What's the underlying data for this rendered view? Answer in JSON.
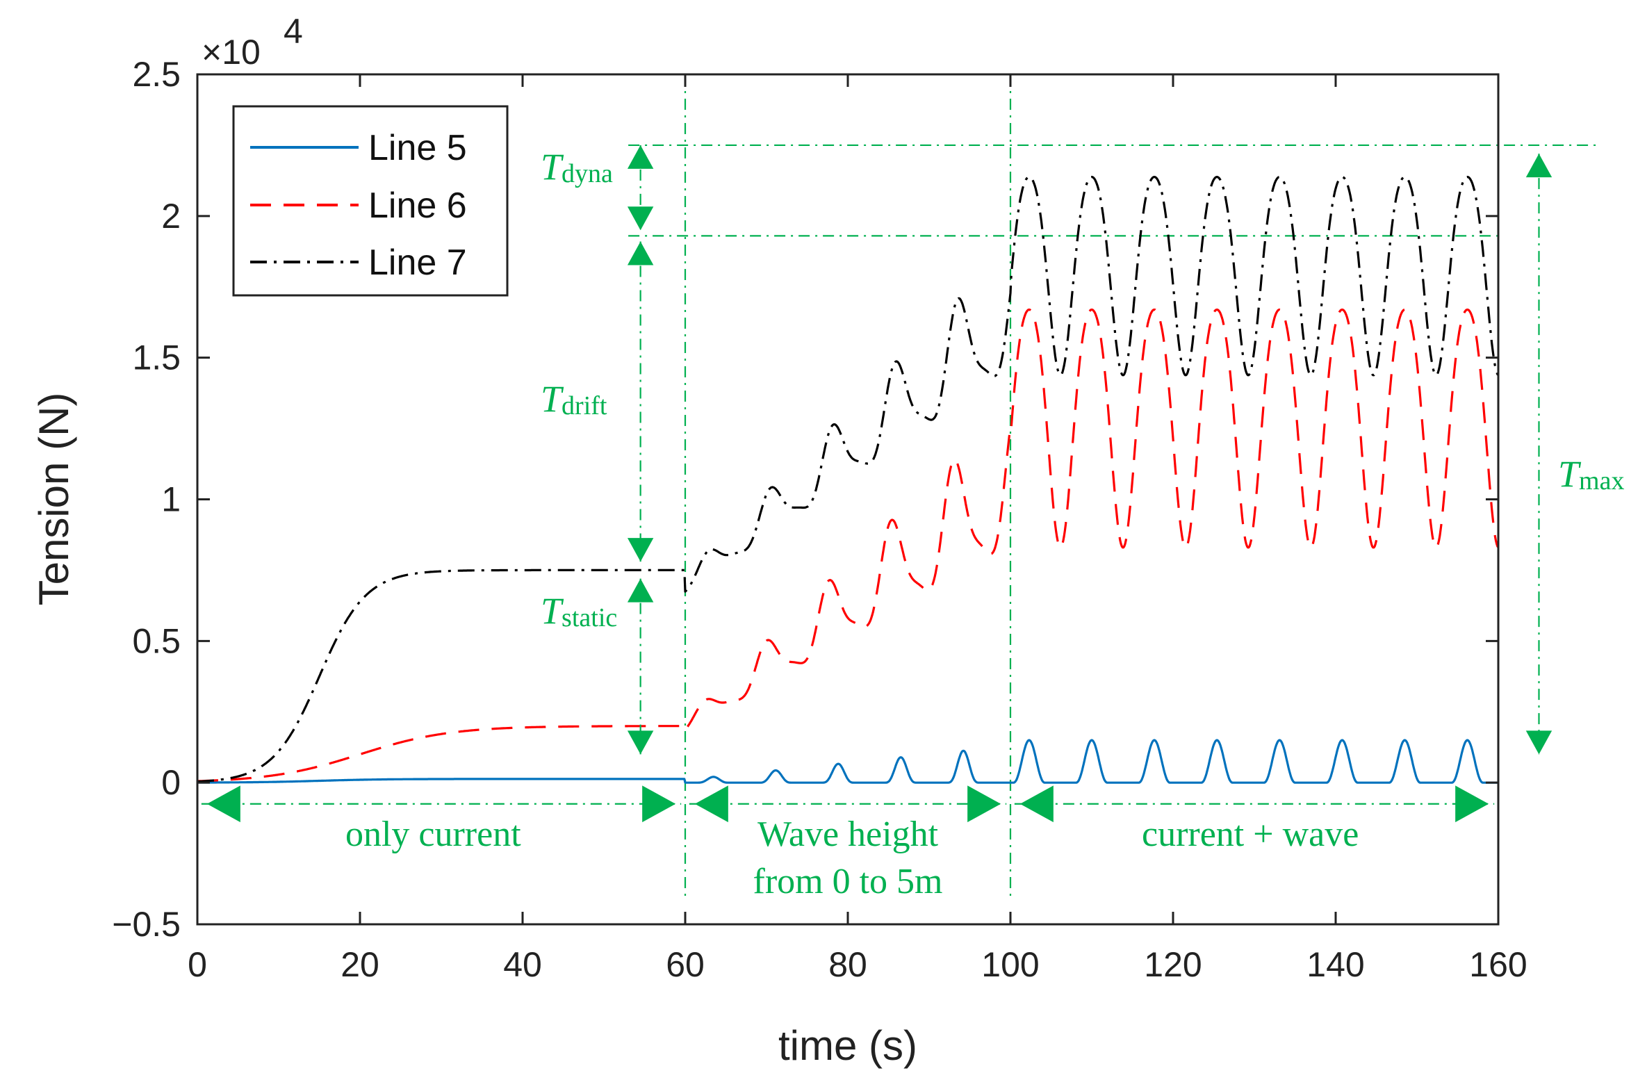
{
  "chart_data": {
    "type": "line",
    "title": "",
    "xlabel": "time (s)",
    "ylabel": "Tension (N)",
    "xlim": [
      0,
      160
    ],
    "ylim": [
      -0.5,
      2.5
    ],
    "y_scale_label": "×10",
    "y_scale_exponent": "4",
    "xticks": [
      "0",
      "20",
      "40",
      "60",
      "80",
      "100",
      "120",
      "140",
      "160"
    ],
    "yticks": [
      "−0.5",
      "0",
      "0.5",
      "1",
      "1.5",
      "2",
      "2.5"
    ],
    "xtick_values": [
      0,
      20,
      40,
      60,
      80,
      100,
      120,
      140,
      160
    ],
    "ytick_values": [
      -0.5,
      0,
      0.5,
      1,
      1.5,
      2,
      2.5
    ],
    "legend": {
      "position": "top-left",
      "entries": [
        "Line 5",
        "Line 6",
        "Line 7"
      ]
    },
    "series": [
      {
        "name": "Line 5",
        "color": "#0072bd",
        "style": "solid",
        "segments": [
          {
            "t0": 0,
            "t1": 60,
            "model": "settle",
            "base": 0.0,
            "final": 0.013,
            "t_mid": 15,
            "k": 0.25
          },
          {
            "t0": 60,
            "t1": 100,
            "model": "ramp_pulse",
            "base": 0.0,
            "amp_start": 0.01,
            "amp_end": 0.13,
            "period": 7.7,
            "phase": 86.5
          },
          {
            "t0": 100,
            "t1": 160,
            "model": "pulse",
            "base": 0.0,
            "amp": 0.15,
            "period": 7.7,
            "phase": 102.3
          }
        ],
        "key_points": {
          "peak_wave_region": 0.16,
          "static": 0.013
        }
      },
      {
        "name": "Line 6",
        "color": "#ff0000",
        "style": "dashed",
        "segments": [
          {
            "t0": 0,
            "t1": 60,
            "model": "settle",
            "base": 0.0,
            "final": 0.2,
            "t_mid": 20,
            "k": 0.18
          },
          {
            "t0": 60,
            "t1": 100,
            "model": "ramp_wave",
            "mean_start": 0.2,
            "mean_end": 1.05,
            "amp_start": 0.02,
            "amp_end": 0.23,
            "period": 7.7,
            "phase": 85.5
          },
          {
            "t0": 100,
            "t1": 160,
            "model": "wave",
            "mean": 1.3,
            "amp": 0.42,
            "period": 7.7,
            "phase": 102.3
          }
        ],
        "key_points": {
          "max": 1.72,
          "min": 0.87,
          "static": 0.2
        }
      },
      {
        "name": "Line 7",
        "color": "#000000",
        "style": "dashdot",
        "segments": [
          {
            "t0": 0,
            "t1": 60,
            "model": "settle",
            "base": 0.0,
            "final": 0.75,
            "t_mid": 15,
            "k": 0.35
          },
          {
            "t0": 60,
            "t1": 100,
            "model": "ramp_wave",
            "mean_start": 0.7,
            "mean_end": 1.65,
            "amp_start": 0.03,
            "amp_end": 0.2,
            "period": 7.7,
            "phase": 86.0
          },
          {
            "t0": 100,
            "t1": 160,
            "model": "wave",
            "mean": 1.83,
            "amp": 0.35,
            "period": 7.7,
            "phase": 102.3
          }
        ],
        "key_points": {
          "max": 2.18,
          "min": 1.47,
          "static": 0.75
        }
      }
    ],
    "annotations": {
      "regions": [
        {
          "label": "only current",
          "x0": 0,
          "x1": 60
        },
        {
          "label": "Wave height",
          "label2": "from 0 to 5m",
          "x0": 60,
          "x1": 100
        },
        {
          "label": "current + wave",
          "x0": 100,
          "x1": 160
        }
      ],
      "region_boundaries_x": [
        60,
        100
      ],
      "reference_levels_y": [
        2.25,
        1.93
      ],
      "t_dyna": {
        "symbol": "T",
        "sub": "dyna",
        "y0": 1.93,
        "y1": 2.25
      },
      "t_drift": {
        "symbol": "T",
        "sub": "drift",
        "y0": 0.75,
        "y1": 1.93
      },
      "t_static": {
        "symbol": "T",
        "sub": "static",
        "y0": 0.0,
        "y1": 0.75
      },
      "t_max": {
        "symbol": "T",
        "sub": "max",
        "y0": 0.0,
        "y1": 2.25
      },
      "color": "#00b050"
    }
  }
}
